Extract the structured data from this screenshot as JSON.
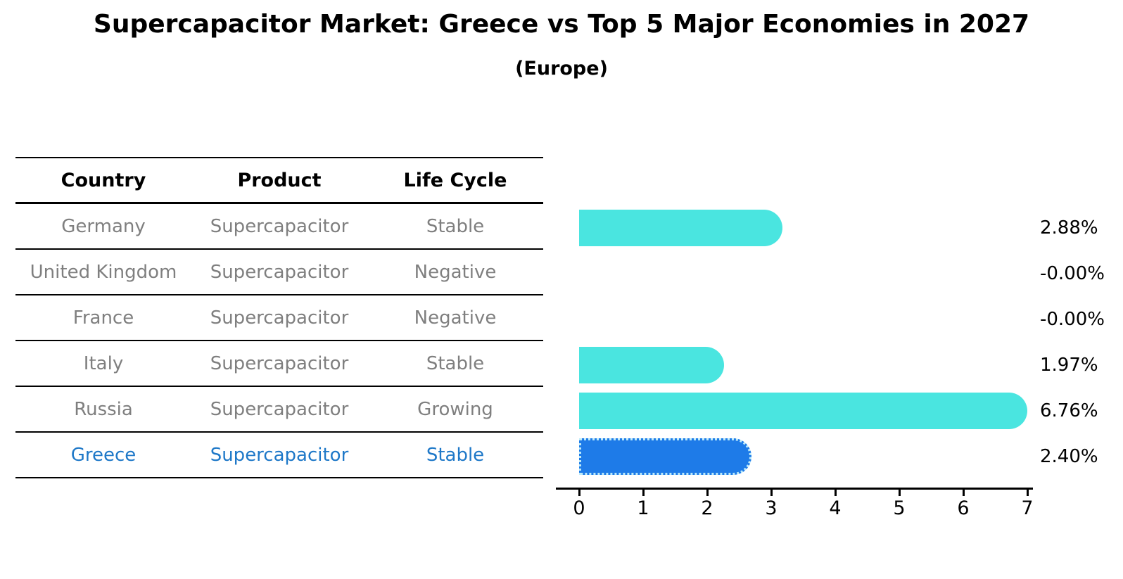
{
  "title": "Supercapacitor Market: Greece vs Top 5 Major Economies in 2027",
  "subtitle": "(Europe)",
  "table": {
    "headers": [
      "Country",
      "Product",
      "Life Cycle"
    ],
    "rows": [
      {
        "country": "Germany",
        "product": "Supercapacitor",
        "life_cycle": "Stable",
        "highlight": false
      },
      {
        "country": "United Kingdom",
        "product": "Supercapacitor",
        "life_cycle": "Negative",
        "highlight": false
      },
      {
        "country": "France",
        "product": "Supercapacitor",
        "life_cycle": "Negative",
        "highlight": false
      },
      {
        "country": "Italy",
        "product": "Supercapacitor",
        "life_cycle": "Stable",
        "highlight": false
      },
      {
        "country": "Russia",
        "product": "Supercapacitor",
        "life_cycle": "Growing",
        "highlight": false
      },
      {
        "country": "Greece",
        "product": "Supercapacitor",
        "life_cycle": "Stable",
        "highlight": true
      }
    ]
  },
  "chart_data": {
    "type": "bar",
    "orientation": "horizontal",
    "title": "Supercapacitor Market: Greece vs Top 5 Major Economies in 2027",
    "subtitle": "(Europe)",
    "categories": [
      "Germany",
      "United Kingdom",
      "France",
      "Italy",
      "Russia",
      "Greece"
    ],
    "values": [
      2.88,
      0,
      0,
      1.97,
      6.76,
      2.4
    ],
    "value_labels": [
      "2.88%",
      "-0.00%",
      "-0.00%",
      "1.97%",
      "6.76%",
      "2.40%"
    ],
    "xlim": [
      0,
      7
    ],
    "x_ticks": [
      "0",
      "1",
      "2",
      "3",
      "4",
      "5",
      "6",
      "7"
    ],
    "grid": false,
    "legend": false,
    "bar_color": "#4ae5e0",
    "highlight_bar_color": "#1e7be8",
    "highlight_index": 5
  },
  "colors": {
    "background": "#ffffff",
    "bar_turquoise": "#4ae5e0",
    "bar_blue": "#1e7be8",
    "bar_blue_dotted_border": "#bdebfa",
    "table_text_gray": "#7f7f7f",
    "highlight_text_blue": "#1e78c8",
    "text_black": "#000000"
  }
}
